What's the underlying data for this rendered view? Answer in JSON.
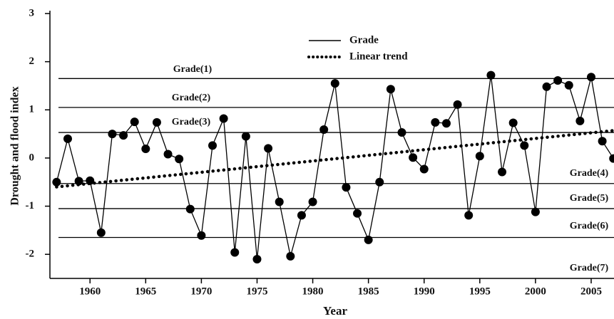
{
  "chart_data": {
    "type": "line",
    "x_label": "Year",
    "y_label": "Drought and flood index",
    "xlim": [
      1956.4,
      2007.05
    ],
    "xticks": [
      1960,
      1965,
      1970,
      1975,
      1980,
      1985,
      1990,
      1995,
      2000,
      2005
    ],
    "ylim": [
      -2.5,
      3
    ],
    "yticks": [
      -2,
      -1,
      0,
      1,
      2,
      3
    ],
    "reference_lines": [
      1.65,
      1.05,
      0.53,
      -0.53,
      -1.05,
      -1.65
    ],
    "annotations": [
      "Grade(1)",
      "Grade(2)",
      "Grade(3)",
      "Grade(4)",
      "Grade(5)",
      "Grade(6)",
      "Grade(7)"
    ],
    "series": [
      {
        "name": "Grade",
        "color": "#000000",
        "style": "solid",
        "x": [
          1957,
          1958,
          1959,
          1960,
          1961,
          1962,
          1963,
          1964,
          1965,
          1966,
          1967,
          1968,
          1969,
          1970,
          1971,
          1972,
          1973,
          1974,
          1975,
          1976,
          1977,
          1978,
          1979,
          1980,
          1981,
          1982,
          1983,
          1984,
          1985,
          1986,
          1987,
          1988,
          1989,
          1990,
          1991,
          1992,
          1993,
          1994,
          1995,
          1996,
          1997,
          1998,
          1999,
          2000,
          2001,
          2002,
          2003,
          2004,
          2005,
          2006,
          2007
        ],
        "values": [
          -0.5,
          0.4,
          -0.48,
          -0.47,
          -1.55,
          0.5,
          0.47,
          0.75,
          0.19,
          0.74,
          0.08,
          -0.02,
          -1.06,
          -1.61,
          0.26,
          0.82,
          -1.96,
          0.45,
          -2.1,
          0.2,
          -0.91,
          -2.04,
          -1.19,
          -0.91,
          0.59,
          1.55,
          -0.61,
          -1.15,
          -1.7,
          -0.5,
          1.43,
          0.53,
          0.01,
          -0.23,
          0.74,
          0.72,
          1.11,
          -1.19,
          0.04,
          1.72,
          -0.29,
          0.73,
          0.26,
          -1.12,
          1.48,
          1.61,
          1.51,
          0.77,
          1.68,
          0.35,
          -0.01
        ]
      },
      {
        "name": "Linear trend",
        "color": "#000000",
        "style": "dotted",
        "x": [
          1957,
          2007
        ],
        "values": [
          -0.6,
          0.57
        ]
      }
    ]
  }
}
